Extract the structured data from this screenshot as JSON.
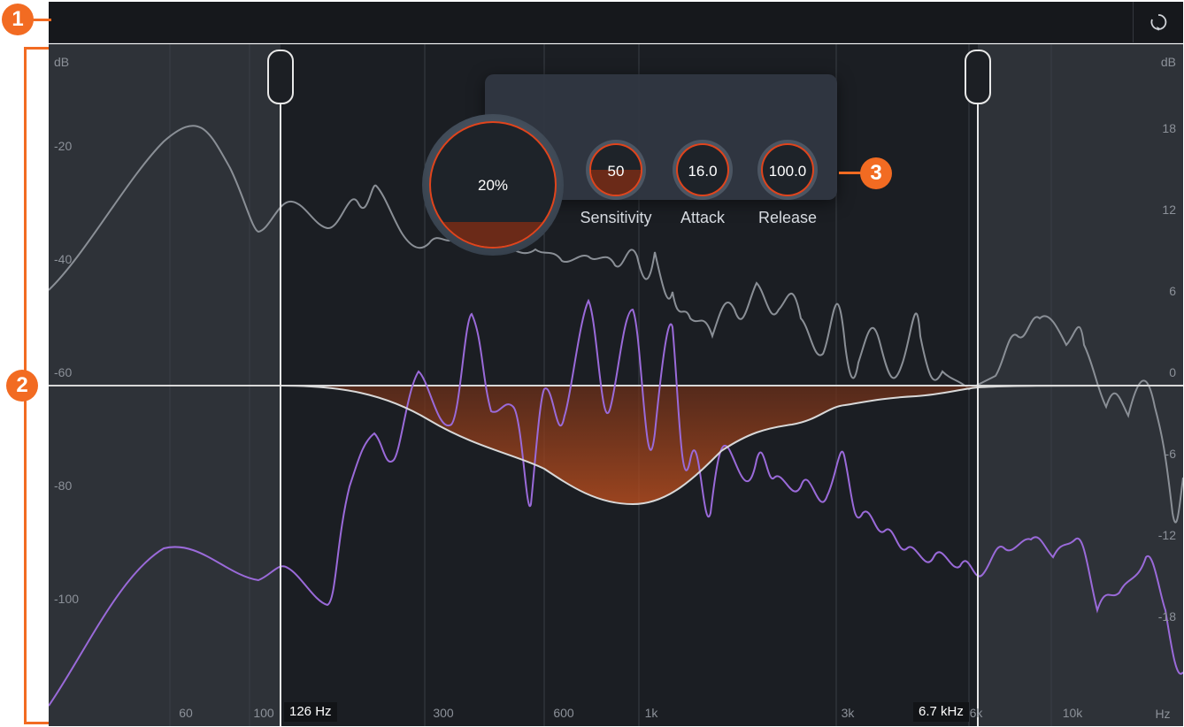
{
  "annotations": [
    "1",
    "2",
    "3"
  ],
  "reset_icon": "reset-icon",
  "axis_left": {
    "unit": "dB",
    "ticks": [
      "-20",
      "-40",
      "-60",
      "-80",
      "-100"
    ]
  },
  "axis_right": {
    "unit": "dB",
    "ticks": [
      "18",
      "12",
      "6",
      "0",
      "-6",
      "-12",
      "-18"
    ]
  },
  "axis_x": {
    "unit": "Hz",
    "ticks": [
      "60",
      "100",
      "300",
      "600",
      "1k",
      "3k",
      "6k",
      "10k"
    ]
  },
  "band": {
    "low_freq": "126 Hz",
    "high_freq": "6.7 kHz"
  },
  "controls": {
    "amount": {
      "value": "20%",
      "fraction": 0.2
    },
    "sensitivity": {
      "label": "Sensitivity",
      "value": "50",
      "fraction": 0.5
    },
    "attack": {
      "label": "Attack",
      "value": "16.0"
    },
    "release": {
      "label": "Release",
      "value": "100.0"
    }
  },
  "colors": {
    "accent": "#f26b22",
    "knob_fill": "#e0441c",
    "input_spectrum": "#9a6ad9",
    "sidechain_spectrum": "#8a8f96",
    "gain_curve": "#d8d8d8",
    "background": "#1b1e23"
  }
}
